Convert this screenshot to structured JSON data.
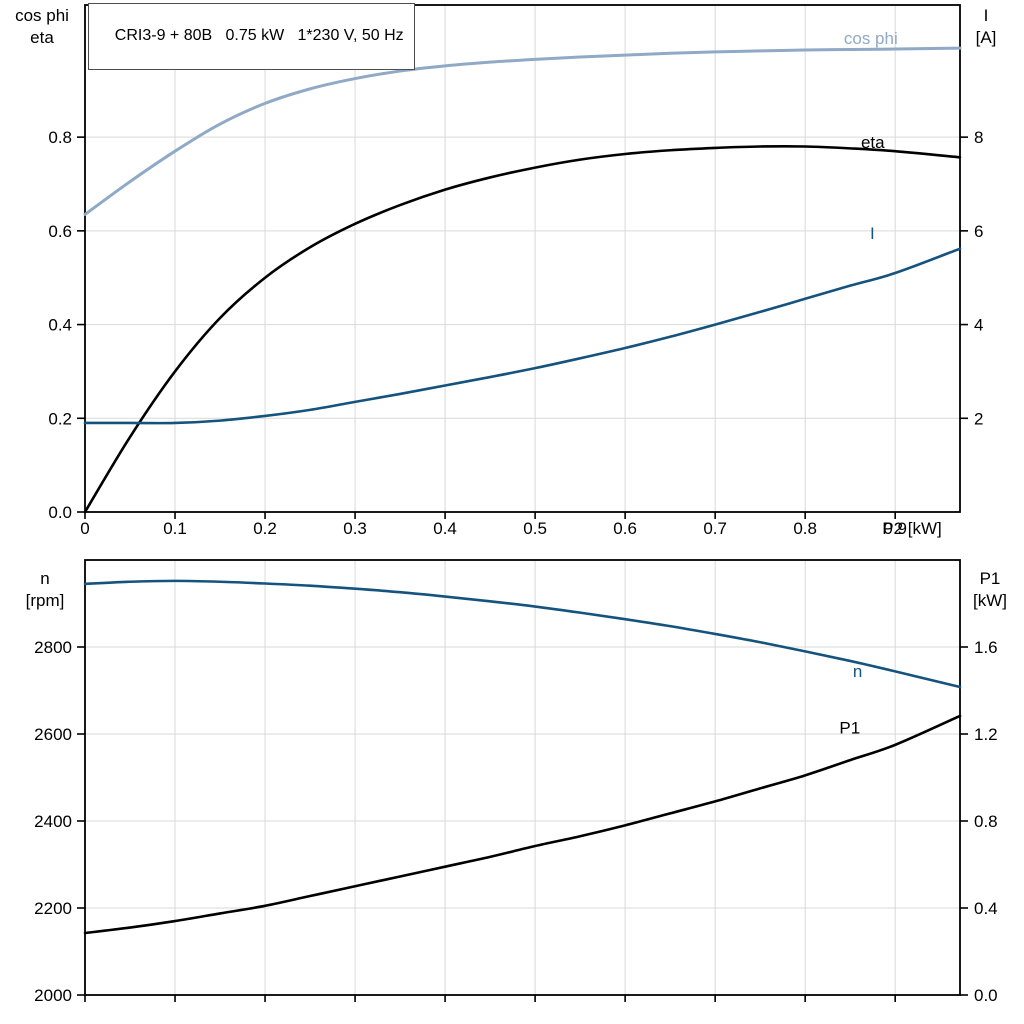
{
  "header": {
    "title": "CRI3-9 + 80B   0.75 kW   1*230 V, 50 Hz"
  },
  "colors": {
    "cos_phi": "#8fa9c6",
    "current": "#15537f",
    "eta": "#000000",
    "n": "#15537f",
    "p1": "#000000",
    "grid": "#d9d9d9",
    "axis": "#000000",
    "text": "#000000"
  },
  "chart_data": [
    {
      "type": "line",
      "title": "CRI3-9 + 80B   0.75 kW   1*230 V, 50 Hz",
      "x_axis": {
        "label": "P2 [kW]",
        "min": 0,
        "max": 0.972,
        "ticks": [
          0,
          0.1,
          0.2,
          0.3,
          0.4,
          0.5,
          0.6,
          0.7,
          0.8,
          0.9
        ],
        "tick_labels": [
          "0",
          "0.1",
          "0.2",
          "0.3",
          "0.4",
          "0.5",
          "0.6",
          "0.7",
          "0.8",
          "0.9"
        ]
      },
      "left_axis": {
        "lines": [
          "cos phi",
          "eta"
        ],
        "min": 0,
        "max": 1.082,
        "ticks": [
          0,
          0.2,
          0.4,
          0.6,
          0.8
        ],
        "tick_labels": [
          "0.0",
          "0.2",
          "0.4",
          "0.6",
          "0.8"
        ]
      },
      "right_axis": {
        "lines": [
          "I",
          "[A]"
        ],
        "min": 0,
        "max": 10.82,
        "ticks": [
          2,
          4,
          6,
          8
        ],
        "tick_labels": [
          "2",
          "4",
          "6",
          "8"
        ]
      },
      "series": [
        {
          "name": "cos phi",
          "axis": "left",
          "color_key": "cos_phi",
          "width": 3,
          "label": {
            "text": "cos phi",
            "x": 0.843,
            "y": 1.012
          },
          "points": [
            [
              0,
              0.635
            ],
            [
              0.05,
              0.705
            ],
            [
              0.1,
              0.77
            ],
            [
              0.15,
              0.828
            ],
            [
              0.2,
              0.872
            ],
            [
              0.25,
              0.903
            ],
            [
              0.3,
              0.925
            ],
            [
              0.35,
              0.941
            ],
            [
              0.4,
              0.952
            ],
            [
              0.45,
              0.96
            ],
            [
              0.5,
              0.966
            ],
            [
              0.55,
              0.971
            ],
            [
              0.6,
              0.975
            ],
            [
              0.65,
              0.979
            ],
            [
              0.7,
              0.982
            ],
            [
              0.75,
              0.984
            ],
            [
              0.8,
              0.986
            ],
            [
              0.85,
              0.987
            ],
            [
              0.9,
              0.988
            ],
            [
              0.972,
              0.99
            ]
          ]
        },
        {
          "name": "eta",
          "axis": "left",
          "color_key": "eta",
          "width": 2.6,
          "label": {
            "text": "eta",
            "x": 0.862,
            "y": 0.79
          },
          "points": [
            [
              0,
              0.0
            ],
            [
              0.05,
              0.16
            ],
            [
              0.1,
              0.3
            ],
            [
              0.15,
              0.414
            ],
            [
              0.2,
              0.5
            ],
            [
              0.25,
              0.565
            ],
            [
              0.3,
              0.615
            ],
            [
              0.35,
              0.655
            ],
            [
              0.4,
              0.688
            ],
            [
              0.45,
              0.714
            ],
            [
              0.5,
              0.735
            ],
            [
              0.55,
              0.752
            ],
            [
              0.6,
              0.764
            ],
            [
              0.65,
              0.772
            ],
            [
              0.7,
              0.777
            ],
            [
              0.75,
              0.78
            ],
            [
              0.8,
              0.78
            ],
            [
              0.85,
              0.776
            ],
            [
              0.9,
              0.77
            ],
            [
              0.972,
              0.757
            ]
          ]
        },
        {
          "name": "I",
          "axis": "right",
          "color_key": "current",
          "width": 2.6,
          "label": {
            "text": "I",
            "x": 0.872,
            "y": 5.95
          },
          "points": [
            [
              0,
              1.9
            ],
            [
              0.05,
              1.9
            ],
            [
              0.1,
              1.9
            ],
            [
              0.15,
              1.95
            ],
            [
              0.2,
              2.05
            ],
            [
              0.25,
              2.18
            ],
            [
              0.3,
              2.35
            ],
            [
              0.35,
              2.52
            ],
            [
              0.4,
              2.7
            ],
            [
              0.45,
              2.88
            ],
            [
              0.5,
              3.07
            ],
            [
              0.55,
              3.28
            ],
            [
              0.6,
              3.5
            ],
            [
              0.65,
              3.74
            ],
            [
              0.7,
              4.0
            ],
            [
              0.75,
              4.27
            ],
            [
              0.8,
              4.55
            ],
            [
              0.85,
              4.83
            ],
            [
              0.9,
              5.1
            ],
            [
              0.972,
              5.62
            ]
          ]
        }
      ]
    },
    {
      "type": "line",
      "title": "",
      "x_axis": {
        "label": "",
        "min": 0,
        "max": 0.972,
        "ticks": [
          0,
          0.1,
          0.2,
          0.3,
          0.4,
          0.5,
          0.6,
          0.7,
          0.8,
          0.9
        ],
        "tick_labels": []
      },
      "left_axis": {
        "lines": [
          "n",
          "[rpm]"
        ],
        "min": 2000,
        "max": 3000,
        "ticks": [
          2000,
          2200,
          2400,
          2600,
          2800
        ],
        "tick_labels": [
          "2000",
          "2200",
          "2400",
          "2600",
          "2800"
        ]
      },
      "right_axis": {
        "lines": [
          "P1",
          "[kW]"
        ],
        "min": 0,
        "max": 2.0,
        "ticks": [
          0,
          0.4,
          0.8,
          1.2,
          1.6
        ],
        "tick_labels": [
          "0.0",
          "0.4",
          "0.8",
          "1.2",
          "1.6"
        ]
      },
      "series": [
        {
          "name": "n",
          "axis": "left",
          "color_key": "n",
          "width": 2.6,
          "label": {
            "text": "n",
            "x": 0.853,
            "y": 2745
          },
          "points": [
            [
              0,
              2945
            ],
            [
              0.05,
              2950
            ],
            [
              0.1,
              2952
            ],
            [
              0.15,
              2950
            ],
            [
              0.2,
              2946
            ],
            [
              0.25,
              2941
            ],
            [
              0.3,
              2934
            ],
            [
              0.35,
              2926
            ],
            [
              0.4,
              2916
            ],
            [
              0.45,
              2905
            ],
            [
              0.5,
              2893
            ],
            [
              0.55,
              2879
            ],
            [
              0.6,
              2864
            ],
            [
              0.65,
              2848
            ],
            [
              0.7,
              2830
            ],
            [
              0.75,
              2811
            ],
            [
              0.8,
              2790
            ],
            [
              0.85,
              2768
            ],
            [
              0.9,
              2744
            ],
            [
              0.972,
              2708
            ]
          ]
        },
        {
          "name": "P1",
          "axis": "right",
          "color_key": "p1",
          "width": 2.6,
          "label": {
            "text": "P1",
            "x": 0.838,
            "y": 1.23
          },
          "points": [
            [
              0,
              0.285
            ],
            [
              0.05,
              0.31
            ],
            [
              0.1,
              0.34
            ],
            [
              0.15,
              0.375
            ],
            [
              0.2,
              0.41
            ],
            [
              0.25,
              0.455
            ],
            [
              0.3,
              0.5
            ],
            [
              0.35,
              0.545
            ],
            [
              0.4,
              0.59
            ],
            [
              0.45,
              0.635
            ],
            [
              0.5,
              0.685
            ],
            [
              0.55,
              0.73
            ],
            [
              0.6,
              0.78
            ],
            [
              0.65,
              0.835
            ],
            [
              0.7,
              0.89
            ],
            [
              0.75,
              0.95
            ],
            [
              0.8,
              1.01
            ],
            [
              0.85,
              1.08
            ],
            [
              0.9,
              1.15
            ],
            [
              0.972,
              1.283
            ]
          ]
        }
      ]
    }
  ]
}
